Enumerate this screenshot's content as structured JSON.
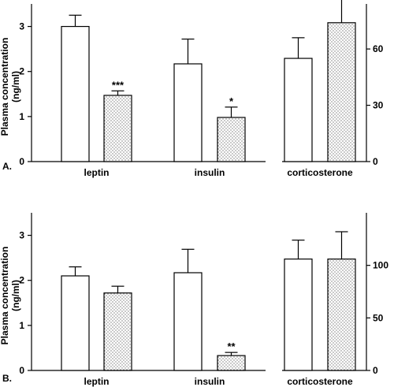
{
  "chart_data": [
    {
      "panel": "A.",
      "type": "bar",
      "ylabel": "Plasma concentration (ng/ml)",
      "ylabel_lines": [
        "Plasma concentration",
        "(ng/ml)"
      ],
      "groups": [
        {
          "label": "leptin",
          "values": [
            3.0,
            1.47
          ],
          "errors": [
            0.25,
            0.1
          ],
          "sig": [
            "",
            "***"
          ],
          "axis": "left"
        },
        {
          "label": "insulin",
          "values": [
            2.17,
            0.98
          ],
          "errors": [
            0.55,
            0.23
          ],
          "sig": [
            "",
            "*"
          ],
          "axis": "left"
        },
        {
          "label": "corticosterone",
          "values": [
            55,
            74
          ],
          "errors": [
            11,
            14
          ],
          "sig": [
            "",
            ""
          ],
          "axis": "right"
        }
      ],
      "left_axis": {
        "ylim": [
          0,
          3.5
        ],
        "ticks": [
          "0",
          "1",
          "2",
          "3"
        ],
        "tick_values": [
          0,
          1,
          2,
          3
        ]
      },
      "right_axis": {
        "ylim": [
          0,
          84
        ],
        "ticks": [
          "0",
          "30",
          "60"
        ],
        "tick_values": [
          0,
          30,
          60
        ]
      },
      "series_styles": [
        "open",
        "dotted"
      ]
    },
    {
      "panel": "B.",
      "type": "bar",
      "ylabel": "Plasma concentration (ng/ml)",
      "ylabel_lines": [
        "Plasma concentration",
        "(ng/ml)"
      ],
      "groups": [
        {
          "label": "leptin",
          "values": [
            2.1,
            1.72
          ],
          "errors": [
            0.2,
            0.15
          ],
          "sig": [
            "",
            ""
          ],
          "axis": "left"
        },
        {
          "label": "insulin",
          "values": [
            2.17,
            0.33
          ],
          "errors": [
            0.52,
            0.07
          ],
          "sig": [
            "",
            "**"
          ],
          "axis": "left"
        },
        {
          "label": "corticosterone",
          "values": [
            106,
            106
          ],
          "errors": [
            18,
            26
          ],
          "sig": [
            "",
            ""
          ],
          "axis": "right"
        }
      ],
      "left_axis": {
        "ylim": [
          0,
          3.5
        ],
        "ticks": [
          "0",
          "1",
          "2",
          "3"
        ],
        "tick_values": [
          0,
          1,
          2,
          3
        ]
      },
      "right_axis": {
        "ylim": [
          0,
          150
        ],
        "ticks": [
          "0",
          "50",
          "100"
        ],
        "tick_values": [
          0,
          50,
          100
        ]
      },
      "series_styles": [
        "open",
        "dotted"
      ]
    }
  ]
}
